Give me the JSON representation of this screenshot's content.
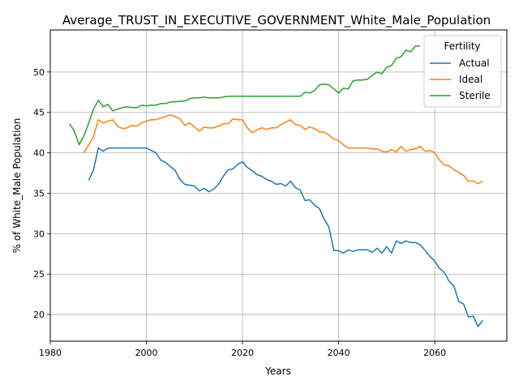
{
  "chart_data": {
    "type": "line",
    "title": "Average_TRUST_IN_EXECUTIVE_GOVERNMENT_White_Male_Population",
    "xlabel": "Years",
    "ylabel": "% of White_Male Population",
    "xlim": [
      1980,
      2075
    ],
    "ylim": [
      16.7,
      55.2
    ],
    "xticks": [
      1980,
      2000,
      2020,
      2040,
      2060
    ],
    "yticks": [
      20,
      25,
      30,
      35,
      40,
      45,
      50
    ],
    "grid": true,
    "legend": {
      "title": "Fertility",
      "placement": "top-right"
    },
    "series": [
      {
        "name": "Actual",
        "color": "#1f77b4",
        "x_start": 1988,
        "values": [
          36.6,
          37.9,
          40.6,
          40.2,
          40.6,
          40.6,
          40.6,
          40.6,
          40.6,
          40.6,
          40.6,
          40.6,
          40.6,
          40.3,
          40.0,
          39.1,
          38.8,
          38.3,
          37.8,
          36.7,
          36.1,
          36.0,
          35.9,
          35.3,
          35.6,
          35.2,
          35.5,
          36.1,
          37.1,
          37.9,
          38.0,
          38.6,
          38.9,
          38.2,
          37.8,
          37.3,
          37.1,
          36.7,
          36.5,
          36.1,
          36.2,
          35.9,
          36.5,
          35.7,
          35.4,
          34.1,
          34.2,
          33.5,
          33.1,
          31.8,
          30.8,
          27.9,
          27.9,
          27.6,
          28.0,
          27.8,
          28.0,
          28.0,
          28.0,
          27.7,
          28.2,
          27.6,
          28.4,
          27.6,
          29.1,
          28.8,
          29.1,
          28.9,
          28.9,
          28.6,
          27.9,
          27.2,
          26.6,
          25.7,
          25.2,
          24.1,
          23.5,
          21.6,
          21.3,
          19.7,
          19.8,
          18.5,
          19.3
        ]
      },
      {
        "name": "Ideal",
        "color": "#ff7f0e",
        "x_start": 1987,
        "values": [
          40.0,
          41.0,
          42.0,
          44.1,
          43.7,
          43.9,
          44.1,
          43.3,
          43.0,
          43.1,
          43.4,
          43.3,
          43.7,
          43.9,
          44.1,
          44.1,
          44.3,
          44.5,
          44.7,
          44.5,
          44.2,
          43.4,
          43.7,
          43.2,
          42.7,
          43.2,
          43.1,
          43.1,
          43.3,
          43.6,
          43.6,
          44.2,
          44.1,
          44.1,
          43.1,
          42.5,
          42.8,
          43.1,
          42.9,
          43.1,
          43.1,
          43.5,
          43.8,
          44.1,
          43.5,
          43.4,
          42.9,
          43.2,
          43.0,
          42.6,
          42.6,
          42.2,
          41.7,
          41.5,
          41.0,
          40.6,
          40.6,
          40.6,
          40.6,
          40.6,
          40.5,
          40.5,
          40.2,
          40.1,
          40.4,
          40.1,
          40.8,
          40.2,
          40.4,
          40.5,
          40.8,
          40.2,
          40.3,
          40.0,
          39.1,
          38.5,
          38.4,
          37.9,
          37.6,
          37.2,
          36.5,
          36.5,
          36.2,
          36.5
        ]
      },
      {
        "name": "Sterile",
        "color": "#2ca02c",
        "x_start": 1984,
        "values": [
          43.6,
          42.7,
          41.0,
          42.1,
          43.7,
          45.4,
          46.5,
          45.7,
          46.0,
          45.2,
          45.4,
          45.6,
          45.7,
          45.6,
          45.6,
          45.9,
          45.8,
          45.9,
          45.9,
          46.1,
          46.1,
          46.3,
          46.3,
          46.4,
          46.4,
          46.7,
          46.8,
          46.8,
          46.9,
          46.8,
          46.8,
          46.8,
          46.9,
          47.0,
          47.0,
          47.0,
          47.0,
          47.0,
          47.0,
          47.0,
          47.0,
          47.0,
          47.0,
          47.0,
          47.0,
          47.0,
          47.0,
          47.0,
          47.0,
          47.5,
          47.4,
          47.7,
          48.4,
          48.5,
          48.4,
          47.9,
          47.4,
          48.0,
          47.9,
          48.9,
          49.0,
          49.0,
          49.1,
          49.6,
          50.0,
          49.8,
          50.6,
          50.8,
          51.7,
          51.9,
          52.7,
          52.5,
          53.2,
          53.2
        ]
      }
    ]
  }
}
